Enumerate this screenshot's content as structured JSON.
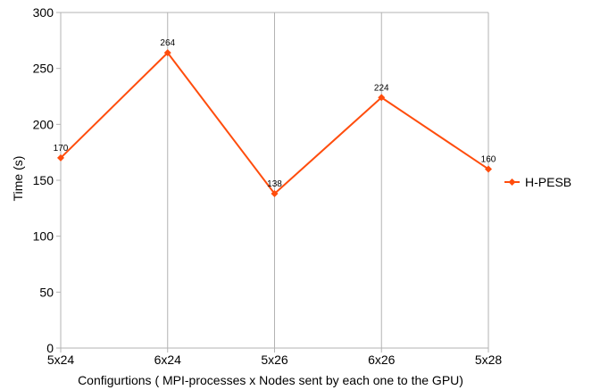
{
  "chart_data": {
    "type": "line",
    "categories": [
      "5x24",
      "6x24",
      "5x26",
      "6x26",
      "5x28"
    ],
    "series": [
      {
        "name": "H-PESB",
        "values": [
          170,
          264,
          138,
          224,
          160
        ]
      }
    ],
    "data_labels": [
      "170",
      "264",
      "138",
      "224",
      "160"
    ],
    "xlabel": "Configurtions ( MPI-processes x Nodes sent by each one to the GPU)",
    "ylabel": "Time (s)",
    "ylim": [
      0,
      300
    ],
    "yticks": [
      0,
      50,
      100,
      150,
      200,
      250,
      300
    ],
    "grid": {
      "vertical": true,
      "horizontal": false
    },
    "legend_position": "right",
    "colors": {
      "series": "#ff4d0d",
      "grid": "#b3b3b3",
      "axis": "#b3b3b3"
    }
  }
}
